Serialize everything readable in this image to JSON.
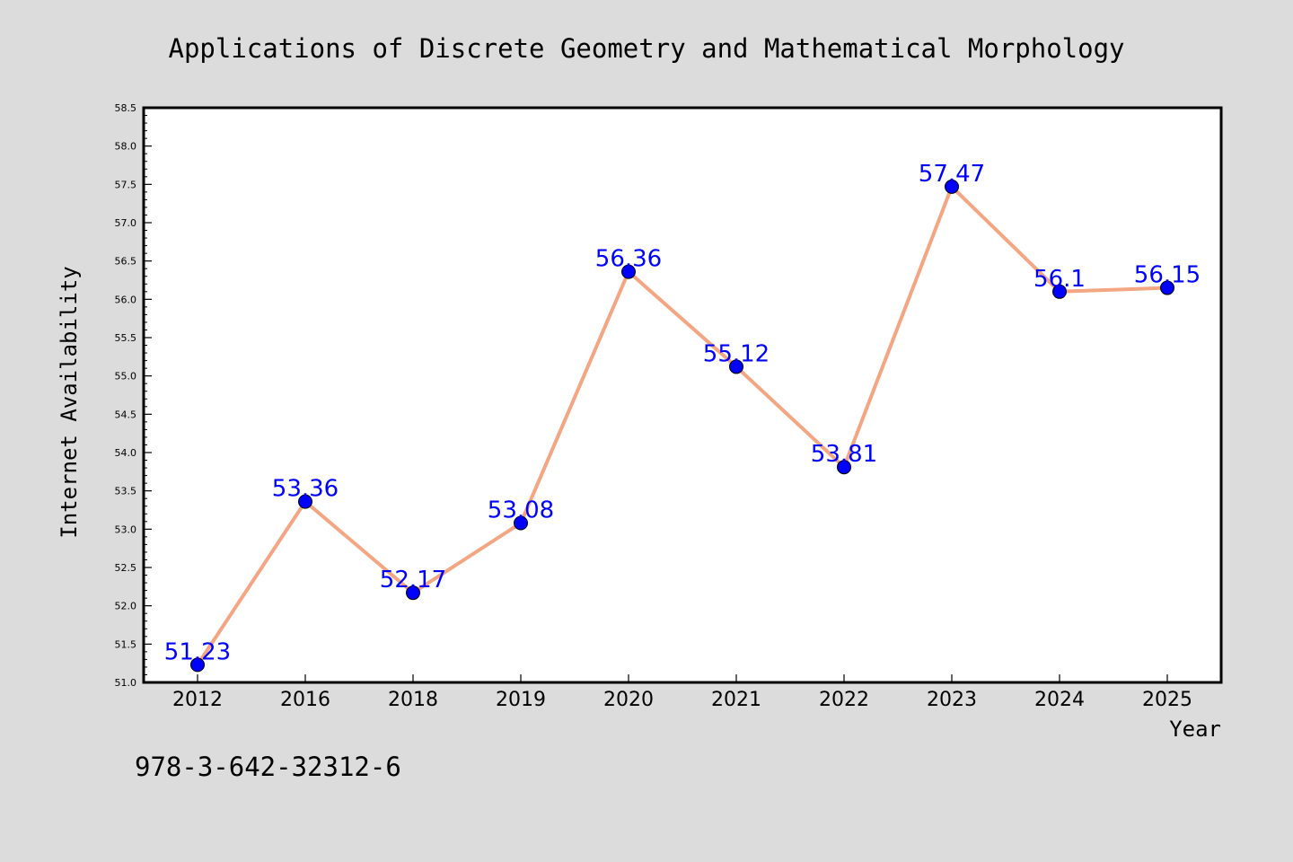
{
  "chart_data": {
    "type": "line",
    "title": "Applications of Discrete Geometry and Mathematical Morphology",
    "xlabel": "Year",
    "ylabel": "Internet Availability",
    "categories": [
      "2012",
      "2016",
      "2018",
      "2019",
      "2020",
      "2021",
      "2022",
      "2023",
      "2024",
      "2025"
    ],
    "series": [
      {
        "values": [
          51.23,
          53.36,
          52.17,
          53.08,
          56.36,
          55.12,
          53.81,
          57.47,
          56.1,
          56.15
        ],
        "labels": [
          "51.23",
          "53.36",
          "52.17",
          "53.08",
          "56.36",
          "55.12",
          "53.81",
          "57.47",
          "56.1",
          "56.15"
        ],
        "line_color": "#f4a582",
        "marker_color": "#0000ff",
        "label_color": "#0000ff"
      }
    ],
    "ylim": [
      51.0,
      58.5
    ],
    "yticks": [
      "51.0",
      "51.5",
      "52.0",
      "52.5",
      "53.0",
      "53.5",
      "54.0",
      "54.5",
      "55.0",
      "55.5",
      "56.0",
      "56.5",
      "57.0",
      "57.5",
      "58.0",
      "58.5"
    ],
    "grid": false,
    "legend": "none",
    "background": "#dcdcdc",
    "plot_background": "#ffffff"
  },
  "footer_code": "978-3-642-32312-6"
}
